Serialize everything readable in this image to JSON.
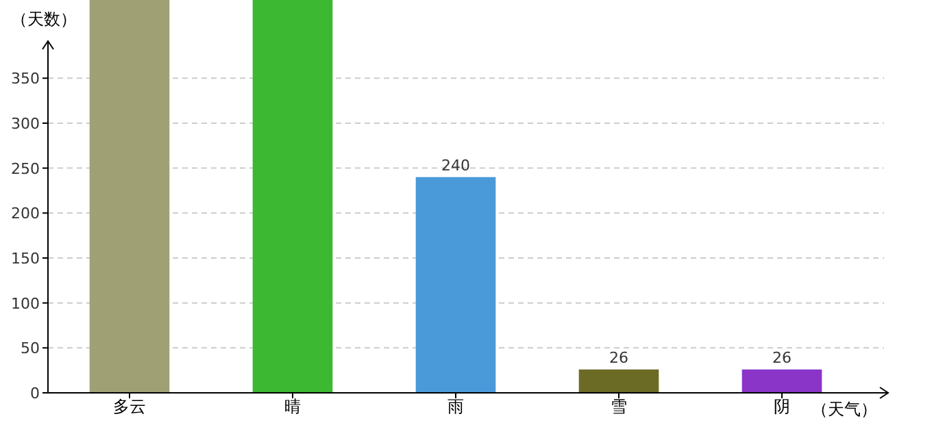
{
  "chart_data": {
    "type": "bar",
    "xlabel": "（天气）",
    "ylabel": "（天数）",
    "categories": [
      "多云",
      "晴",
      "雨",
      "雪",
      "阴"
    ],
    "values": [
      437,
      437,
      240,
      26,
      26
    ],
    "colors": [
      "#a0a075",
      "#3cb832",
      "#4a9ada",
      "#6b6b26",
      "#8a35c8"
    ],
    "value_labels": [
      null,
      null,
      "240",
      "26",
      "26"
    ],
    "ylim": [
      0,
      437
    ],
    "yticks": [
      0,
      50,
      100,
      150,
      200,
      250,
      300,
      350
    ],
    "grid": "y"
  }
}
